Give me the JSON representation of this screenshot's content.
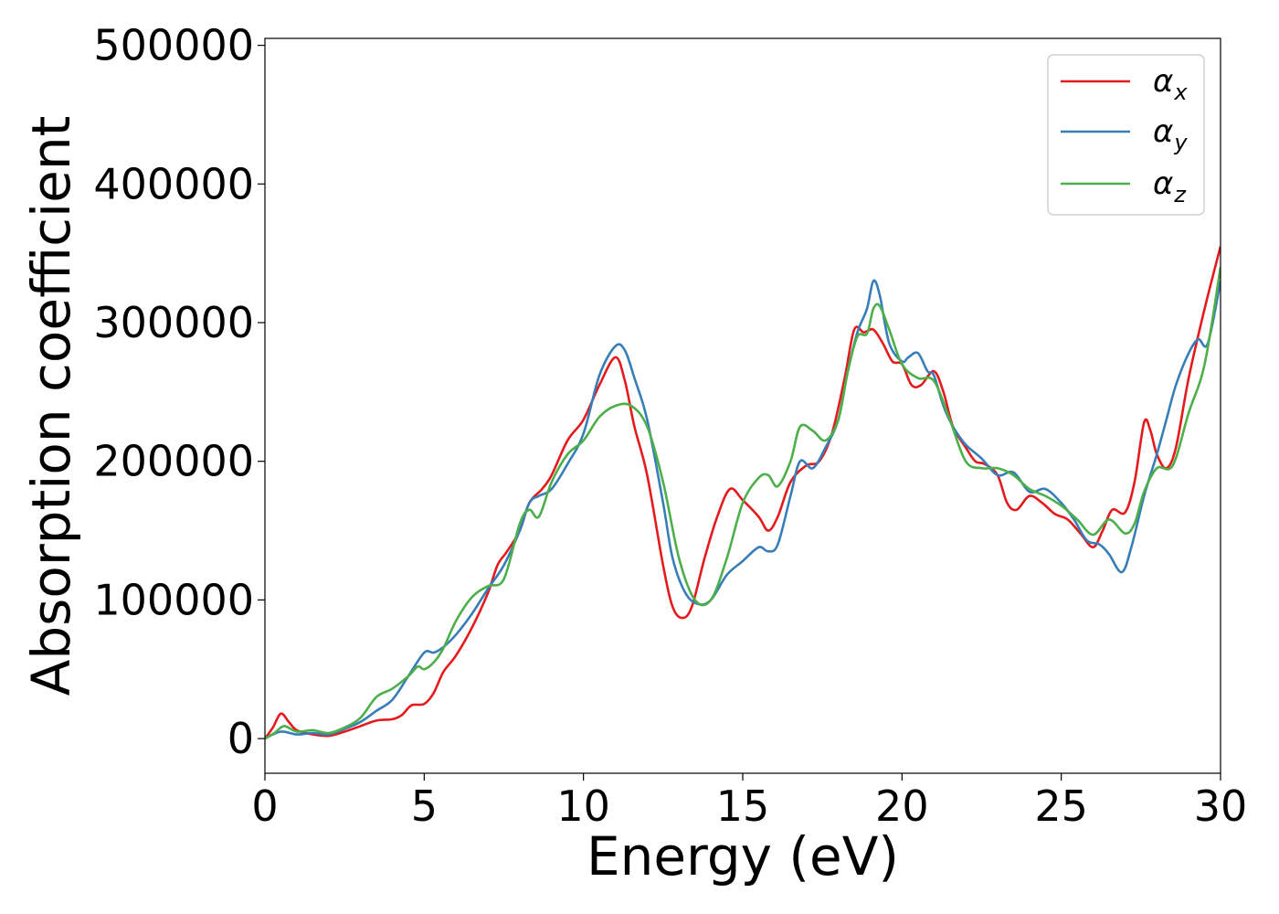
{
  "chart_data": {
    "type": "line",
    "xlabel": "Energy (eV)",
    "ylabel": "Absorption coefficient",
    "xlim": [
      0,
      30
    ],
    "ylim": [
      -25000,
      505000
    ],
    "xticks": [
      "0",
      "5",
      "10",
      "15",
      "20",
      "25",
      "30"
    ],
    "yticks": [
      "0",
      "100000",
      "200000",
      "300000",
      "400000",
      "500000"
    ],
    "grid": false,
    "legend_position": "top-right",
    "colors": {
      "x": "#e41a1c",
      "y": "#377eb8",
      "z": "#4daf4a"
    },
    "series": [
      {
        "name": "α_x",
        "symbol": "α",
        "subscript": "x",
        "color": "#e41a1c",
        "x": [
          0,
          0.25,
          0.5,
          0.75,
          1.0,
          1.5,
          2.0,
          2.5,
          3.0,
          3.5,
          4.0,
          4.3,
          4.6,
          5.0,
          5.3,
          5.6,
          6.0,
          6.5,
          7.0,
          7.3,
          7.6,
          8.0,
          8.3,
          8.7,
          9.0,
          9.5,
          10.0,
          10.5,
          11.0,
          11.3,
          11.6,
          12.0,
          12.5,
          12.8,
          13.1,
          13.4,
          13.8,
          14.2,
          14.6,
          15.0,
          15.5,
          15.8,
          16.1,
          16.5,
          17.0,
          17.4,
          17.8,
          18.2,
          18.5,
          18.8,
          19.1,
          19.4,
          19.7,
          20.0,
          20.3,
          20.6,
          21.0,
          21.3,
          21.6,
          22.0,
          22.3,
          22.6,
          23.0,
          23.3,
          23.6,
          24.0,
          24.4,
          24.8,
          25.2,
          25.6,
          26.0,
          26.3,
          26.6,
          27.0,
          27.3,
          27.6,
          27.8,
          28.0,
          28.3,
          28.6,
          29.0,
          29.5,
          30.0
        ],
        "values": [
          0,
          8000,
          18000,
          12000,
          6000,
          3000,
          2000,
          5000,
          9000,
          13000,
          14000,
          17000,
          24000,
          25000,
          33000,
          48000,
          60000,
          80000,
          105000,
          125000,
          135000,
          150000,
          170000,
          180000,
          190000,
          215000,
          230000,
          255000,
          275000,
          258000,
          225000,
          190000,
          125000,
          95000,
          87000,
          95000,
          130000,
          160000,
          180000,
          172000,
          160000,
          150000,
          160000,
          185000,
          197000,
          200000,
          220000,
          260000,
          295000,
          293000,
          295000,
          285000,
          272000,
          270000,
          255000,
          255000,
          265000,
          250000,
          225000,
          210000,
          200000,
          198000,
          190000,
          170000,
          165000,
          175000,
          170000,
          162000,
          158000,
          148000,
          138000,
          150000,
          165000,
          163000,
          185000,
          228000,
          222000,
          205000,
          195000,
          210000,
          260000,
          310000,
          355000
        ]
      },
      {
        "name": "α_y",
        "symbol": "α",
        "subscript": "y",
        "color": "#377eb8",
        "x": [
          0,
          0.5,
          1.0,
          1.5,
          2.0,
          2.5,
          3.0,
          3.5,
          4.0,
          4.5,
          5.0,
          5.3,
          5.6,
          6.0,
          6.5,
          7.0,
          7.5,
          8.0,
          8.3,
          8.6,
          9.0,
          9.5,
          10.0,
          10.5,
          11.0,
          11.3,
          11.6,
          12.0,
          12.5,
          12.8,
          13.2,
          13.6,
          14.0,
          14.5,
          15.0,
          15.5,
          15.8,
          16.1,
          16.5,
          16.8,
          17.2,
          17.6,
          18.0,
          18.3,
          18.6,
          18.9,
          19.1,
          19.3,
          19.6,
          20.0,
          20.2,
          20.5,
          20.8,
          21.0,
          21.3,
          21.6,
          22.0,
          22.5,
          23.0,
          23.5,
          24.0,
          24.5,
          25.0,
          25.4,
          25.8,
          26.2,
          26.5,
          26.9,
          27.2,
          27.6,
          28.0,
          28.3,
          28.6,
          29.0,
          29.3,
          29.6,
          30.0
        ],
        "values": [
          0,
          5000,
          3000,
          4000,
          3000,
          7000,
          12000,
          20000,
          28000,
          45000,
          62000,
          62000,
          66000,
          75000,
          90000,
          108000,
          125000,
          150000,
          170000,
          175000,
          180000,
          198000,
          220000,
          262000,
          283000,
          280000,
          260000,
          230000,
          170000,
          130000,
          105000,
          97000,
          100000,
          118000,
          128000,
          138000,
          135000,
          140000,
          175000,
          200000,
          195000,
          210000,
          230000,
          265000,
          293000,
          310000,
          330000,
          320000,
          285000,
          272000,
          275000,
          278000,
          265000,
          262000,
          240000,
          225000,
          212000,
          202000,
          190000,
          192000,
          178000,
          180000,
          170000,
          158000,
          143000,
          140000,
          133000,
          120000,
          138000,
          175000,
          205000,
          230000,
          255000,
          278000,
          288000,
          285000,
          330000
        ]
      },
      {
        "name": "α_z",
        "symbol": "α",
        "subscript": "z",
        "color": "#4daf4a",
        "x": [
          0,
          0.3,
          0.6,
          1.0,
          1.5,
          2.0,
          2.5,
          3.0,
          3.5,
          4.0,
          4.5,
          4.8,
          5.0,
          5.3,
          5.6,
          6.0,
          6.5,
          7.0,
          7.5,
          8.0,
          8.3,
          8.6,
          9.0,
          9.5,
          10.0,
          10.5,
          11.0,
          11.5,
          12.0,
          12.5,
          13.0,
          13.5,
          14.0,
          14.5,
          15.0,
          15.5,
          15.8,
          16.1,
          16.5,
          16.8,
          17.2,
          17.6,
          18.0,
          18.3,
          18.6,
          18.9,
          19.1,
          19.3,
          19.6,
          20.0,
          20.5,
          21.0,
          21.5,
          22.0,
          22.5,
          23.0,
          23.5,
          24.0,
          24.5,
          25.0,
          25.5,
          26.0,
          26.5,
          27.0,
          27.3,
          27.6,
          28.0,
          28.5,
          29.0,
          29.5,
          30.0
        ],
        "values": [
          0,
          4000,
          9000,
          5000,
          6000,
          4000,
          8000,
          15000,
          30000,
          36000,
          45000,
          52000,
          50000,
          55000,
          65000,
          85000,
          102000,
          110000,
          115000,
          155000,
          165000,
          160000,
          185000,
          205000,
          215000,
          232000,
          240000,
          240000,
          225000,
          185000,
          130000,
          100000,
          100000,
          130000,
          170000,
          188000,
          190000,
          182000,
          200000,
          225000,
          222000,
          215000,
          230000,
          265000,
          290000,
          292000,
          310000,
          312000,
          295000,
          270000,
          260000,
          258000,
          230000,
          200000,
          195000,
          195000,
          190000,
          180000,
          175000,
          168000,
          158000,
          147000,
          158000,
          148000,
          155000,
          178000,
          195000,
          197000,
          235000,
          270000,
          340000
        ]
      }
    ]
  }
}
